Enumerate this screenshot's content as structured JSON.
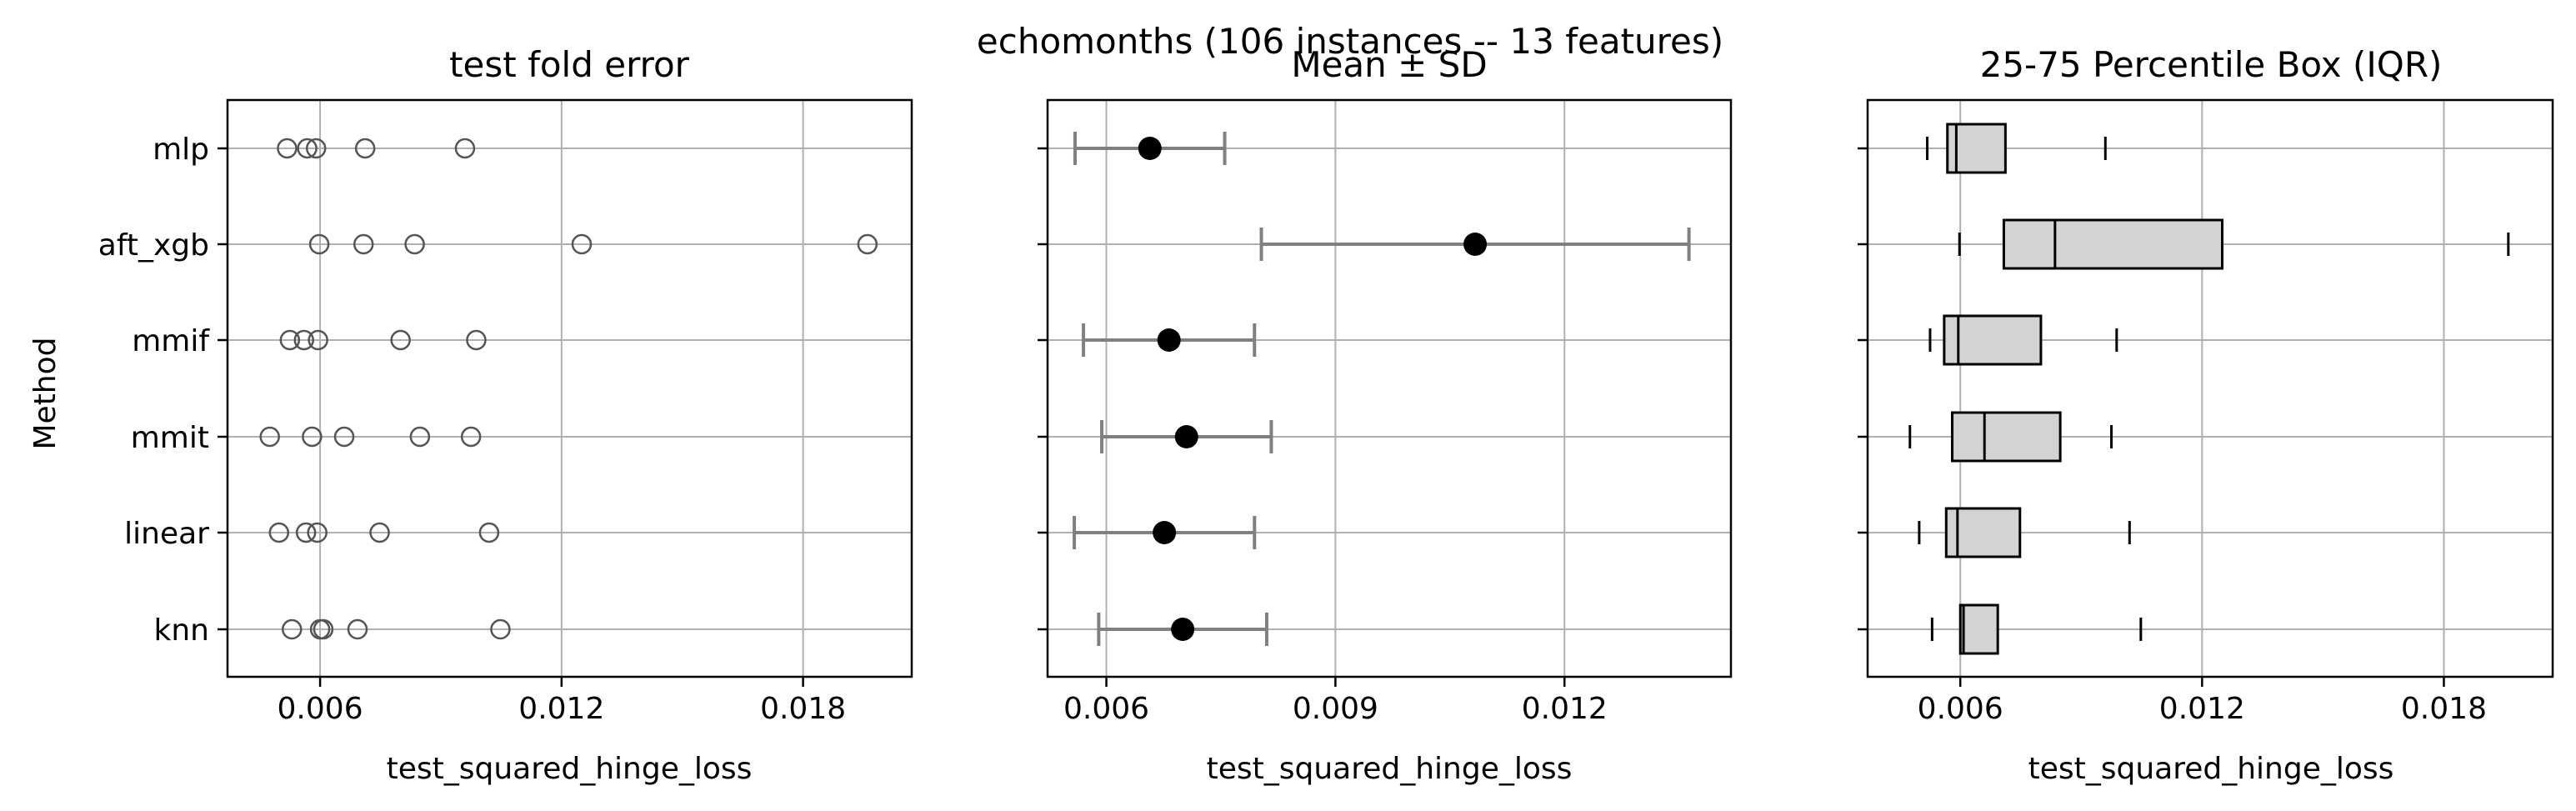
{
  "figure": {
    "suptitle": "echomonths (106 instances -- 13 features)",
    "ylabel": "Method"
  },
  "chart_data": [
    {
      "type": "scatter",
      "title": "test fold error",
      "xlabel": "test_squared_hinge_loss",
      "ylabel": "Method",
      "categories": [
        "knn",
        "linear",
        "mmit",
        "mmif",
        "aft_xgb",
        "mlp"
      ],
      "xlim": [
        0.0037,
        0.0207
      ],
      "xticks": [
        0.006,
        0.012,
        0.018
      ],
      "xtick_labels": [
        "0.006",
        "0.012",
        "0.018"
      ],
      "grid": true,
      "points": {
        "mlp": [
          0.00518,
          0.00568,
          0.0059,
          0.00712,
          0.0096
        ],
        "aft_xgb": [
          0.00598,
          0.00708,
          0.00835,
          0.0125,
          0.0196
        ],
        "mmif": [
          0.00525,
          0.0056,
          0.00595,
          0.008,
          0.00988
        ],
        "mmit": [
          0.00475,
          0.0058,
          0.0066,
          0.00848,
          0.00975
        ],
        "linear": [
          0.00498,
          0.00565,
          0.00593,
          0.00748,
          0.0102
        ],
        "knn": [
          0.0053,
          0.006,
          0.00608,
          0.00693,
          0.01048
        ]
      }
    },
    {
      "type": "errorbar",
      "title": "Mean ± SD",
      "xlabel": "test_squared_hinge_loss",
      "categories": [
        "knn",
        "linear",
        "mmit",
        "mmif",
        "aft_xgb",
        "mlp"
      ],
      "xlim": [
        0.00523,
        0.01418
      ],
      "xticks": [
        0.006,
        0.009,
        0.012
      ],
      "xtick_labels": [
        "0.006",
        "0.009",
        "0.012"
      ],
      "grid": true,
      "series": [
        {
          "category": "mlp",
          "mean": 0.00657,
          "sd": 0.00098
        },
        {
          "category": "aft_xgb",
          "mean": 0.01083,
          "sd": 0.0028
        },
        {
          "category": "mmif",
          "mean": 0.00682,
          "sd": 0.00112
        },
        {
          "category": "mmit",
          "mean": 0.00705,
          "sd": 0.00111
        },
        {
          "category": "linear",
          "mean": 0.00676,
          "sd": 0.00118
        },
        {
          "category": "knn",
          "mean": 0.007,
          "sd": 0.0011
        }
      ]
    },
    {
      "type": "box",
      "title": "25-75 Percentile Box (IQR)",
      "xlabel": "test_squared_hinge_loss",
      "categories": [
        "knn",
        "linear",
        "mmit",
        "mmif",
        "aft_xgb",
        "mlp"
      ],
      "xlim": [
        0.0037,
        0.0207
      ],
      "xticks": [
        0.006,
        0.012,
        0.018
      ],
      "xtick_labels": [
        "0.006",
        "0.012",
        "0.018"
      ],
      "grid": true,
      "series": [
        {
          "category": "mlp",
          "min": 0.00518,
          "q1": 0.00568,
          "median": 0.0059,
          "q3": 0.00712,
          "max": 0.0096
        },
        {
          "category": "aft_xgb",
          "min": 0.00598,
          "q1": 0.00708,
          "median": 0.00835,
          "q3": 0.0125,
          "max": 0.0196
        },
        {
          "category": "mmif",
          "min": 0.00525,
          "q1": 0.0056,
          "median": 0.00595,
          "q3": 0.008,
          "max": 0.00988
        },
        {
          "category": "mmit",
          "min": 0.00475,
          "q1": 0.0058,
          "median": 0.0066,
          "q3": 0.00848,
          "max": 0.00975
        },
        {
          "category": "linear",
          "min": 0.00498,
          "q1": 0.00565,
          "median": 0.00593,
          "q3": 0.00748,
          "max": 0.0102
        },
        {
          "category": "knn",
          "min": 0.0053,
          "q1": 0.006,
          "median": 0.00608,
          "q3": 0.00693,
          "max": 0.01048
        }
      ]
    }
  ],
  "colors": {
    "grid": "#b0b0b0",
    "marker_edge": "#555555",
    "errorbar": "#808080",
    "mean_dot": "#000000",
    "box_fill": "#d3d3d3",
    "axis": "#000000"
  }
}
